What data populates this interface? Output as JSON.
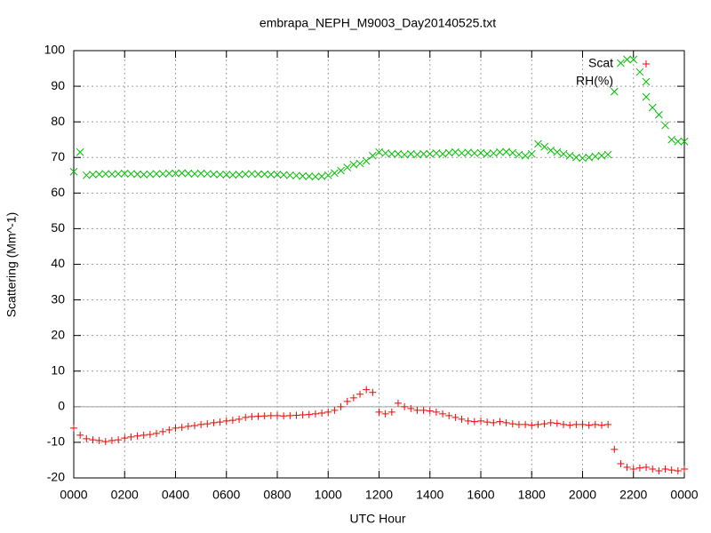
{
  "chart_data": {
    "type": "scatter",
    "title": "embrapa_NEPH_M9003_Day20140525.txt",
    "xlabel": "UTC Hour",
    "ylabel": "Scattering (Mm^-1)",
    "x": [
      0,
      0.25,
      0.5,
      0.75,
      1,
      1.25,
      1.5,
      1.75,
      2,
      2.25,
      2.5,
      2.75,
      3,
      3.25,
      3.5,
      3.75,
      4,
      4.25,
      4.5,
      4.75,
      5,
      5.25,
      5.5,
      5.75,
      6,
      6.25,
      6.5,
      6.75,
      7,
      7.25,
      7.5,
      7.75,
      8,
      8.25,
      8.5,
      8.75,
      9,
      9.25,
      9.5,
      9.75,
      10,
      10.25,
      10.5,
      10.75,
      11,
      11.25,
      11.5,
      11.75,
      12,
      12.25,
      12.5,
      12.75,
      13,
      13.25,
      13.5,
      13.75,
      14,
      14.25,
      14.5,
      14.75,
      15,
      15.25,
      15.5,
      15.75,
      16,
      16.25,
      16.5,
      16.75,
      17,
      17.25,
      17.5,
      17.75,
      18,
      18.25,
      18.5,
      18.75,
      19,
      19.25,
      19.5,
      19.75,
      20,
      20.25,
      20.5,
      20.75,
      21,
      21.25,
      21.5,
      21.75,
      22,
      22.25,
      22.5,
      22.75,
      23,
      23.25,
      23.5,
      23.75,
      24
    ],
    "series": [
      {
        "name": "Scat",
        "color": "#ff0000",
        "marker": "plus",
        "values": [
          -6,
          -8,
          -9,
          -9.3,
          -9.5,
          -9.8,
          -9.5,
          -9.3,
          -8.8,
          -8.5,
          -8.2,
          -8,
          -7.8,
          -7.5,
          -7,
          -6.5,
          -6,
          -5.8,
          -5.5,
          -5.3,
          -5,
          -4.8,
          -4.5,
          -4.3,
          -4,
          -3.8,
          -3.5,
          -3,
          -2.8,
          -2.7,
          -2.6,
          -2.5,
          -2.5,
          -2.6,
          -2.5,
          -2.4,
          -2.3,
          -2.2,
          -2,
          -1.8,
          -1.5,
          -1,
          0,
          1.5,
          2.5,
          3.5,
          4.8,
          4,
          -1.5,
          -2,
          -1.5,
          1,
          0,
          -0.5,
          -1,
          -1,
          -1.2,
          -1.5,
          -2,
          -2.5,
          -3,
          -3.5,
          -4,
          -4.2,
          -4,
          -4.3,
          -4.5,
          -4.2,
          -4.5,
          -4.8,
          -5,
          -5,
          -5.2,
          -5,
          -4.8,
          -4.5,
          -4.7,
          -5,
          -5.2,
          -5,
          -5,
          -5.2,
          -5,
          -5.2,
          -5,
          -12,
          -16,
          -17,
          -17.5,
          -17.2,
          -17,
          -17.5,
          -18,
          -17.5,
          -17.8,
          -18,
          -17.5
        ]
      },
      {
        "name": "RH(%)",
        "color": "#00c000",
        "marker": "cross",
        "values": [
          66,
          71.5,
          65,
          65.2,
          65.3,
          65.4,
          65.3,
          65.4,
          65.5,
          65.4,
          65.3,
          65.2,
          65.3,
          65.4,
          65.4,
          65.5,
          65.5,
          65.6,
          65.5,
          65.4,
          65.5,
          65.4,
          65.3,
          65.2,
          65.2,
          65.1,
          65.2,
          65.3,
          65.4,
          65.3,
          65.3,
          65.2,
          65.2,
          65.1,
          65,
          64.9,
          64.8,
          64.7,
          64.6,
          64.7,
          65,
          65.6,
          66.3,
          67.2,
          68,
          68.3,
          69,
          70.5,
          71.5,
          71.2,
          71,
          71,
          70.8,
          71,
          70.8,
          71,
          71,
          71.2,
          71,
          71.3,
          71.5,
          71.2,
          71.4,
          71.2,
          71.3,
          71,
          71.2,
          71.5,
          71.6,
          71.3,
          70.8,
          70.5,
          71,
          73.8,
          73,
          72,
          71.5,
          71,
          70.5,
          70,
          69.8,
          70,
          70.3,
          70.5,
          70.8,
          88.5,
          96.5,
          97.5,
          97.5,
          94,
          87,
          84,
          82,
          79,
          75,
          74.5,
          74.5
        ]
      }
    ],
    "xlim": [
      0,
      24
    ],
    "xticks": [
      {
        "value": 0,
        "label": "0000"
      },
      {
        "value": 2,
        "label": "0200"
      },
      {
        "value": 4,
        "label": "0400"
      },
      {
        "value": 6,
        "label": "0600"
      },
      {
        "value": 8,
        "label": "0800"
      },
      {
        "value": 10,
        "label": "1000"
      },
      {
        "value": 12,
        "label": "1200"
      },
      {
        "value": 14,
        "label": "1400"
      },
      {
        "value": 16,
        "label": "1600"
      },
      {
        "value": 18,
        "label": "1800"
      },
      {
        "value": 20,
        "label": "2000"
      },
      {
        "value": 22,
        "label": "2200"
      },
      {
        "value": 24,
        "label": "0000"
      }
    ],
    "ylim": [
      -20,
      100
    ],
    "yticks": [
      -20,
      -10,
      0,
      10,
      20,
      30,
      40,
      50,
      60,
      70,
      80,
      90,
      100
    ],
    "grid": true,
    "zeroaxis": true,
    "legend": "top right"
  }
}
